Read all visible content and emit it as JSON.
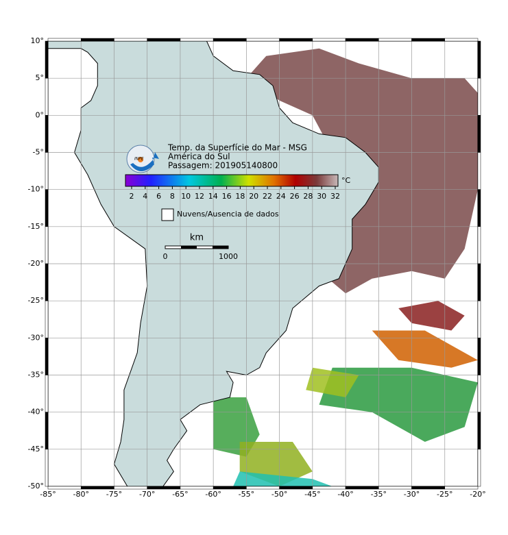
{
  "map": {
    "title": [
      "Temp. da Superfície do Mar - MSG",
      "América do Sul",
      "Passagem: 201905140800"
    ],
    "logo_text": "INPE",
    "lon_ticks": [
      {
        "value": -85,
        "label": "-85°"
      },
      {
        "value": -80,
        "label": "-80°"
      },
      {
        "value": -75,
        "label": "-75°"
      },
      {
        "value": -70,
        "label": "-70°"
      },
      {
        "value": -65,
        "label": "-65°"
      },
      {
        "value": -60,
        "label": "-60°"
      },
      {
        "value": -55,
        "label": "-55°"
      },
      {
        "value": -50,
        "label": "-50°"
      },
      {
        "value": -45,
        "label": "-45°"
      },
      {
        "value": -40,
        "label": "-40°"
      },
      {
        "value": -35,
        "label": "-35°"
      },
      {
        "value": -30,
        "label": "-30°"
      },
      {
        "value": -25,
        "label": "-25°"
      },
      {
        "value": -20,
        "label": "-20°"
      }
    ],
    "lat_ticks": [
      {
        "value": 10,
        "label": "10°"
      },
      {
        "value": 5,
        "label": "5°"
      },
      {
        "value": 0,
        "label": "0°"
      },
      {
        "value": -5,
        "label": "-5°"
      },
      {
        "value": -10,
        "label": "-10°"
      },
      {
        "value": -15,
        "label": "-15°"
      },
      {
        "value": -20,
        "label": "-20°"
      },
      {
        "value": -25,
        "label": "-25°"
      },
      {
        "value": -30,
        "label": "-30°"
      },
      {
        "value": -35,
        "label": "-35°"
      },
      {
        "value": -40,
        "label": "-40°"
      },
      {
        "value": -45,
        "label": "-45°"
      },
      {
        "value": -50,
        "label": "-50°"
      }
    ],
    "colorbar": {
      "ticks": [
        2,
        4,
        6,
        8,
        10,
        12,
        14,
        16,
        18,
        20,
        22,
        24,
        26,
        28,
        30,
        32
      ],
      "unit": "°C"
    },
    "legend": "Nuvens/Ausencia de dados",
    "scale": {
      "unit": "km",
      "ticks": [
        0,
        1000
      ]
    }
  }
}
